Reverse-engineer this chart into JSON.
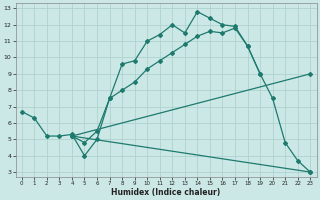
{
  "xlabel": "Humidex (Indice chaleur)",
  "bg_color": "#cce8e6",
  "grid_color": "#aacfcc",
  "line_color": "#1e7a6e",
  "xlim": [
    -0.5,
    23.5
  ],
  "ylim": [
    2.7,
    13.3
  ],
  "xticks": [
    0,
    1,
    2,
    3,
    4,
    5,
    6,
    7,
    8,
    9,
    10,
    11,
    12,
    13,
    14,
    15,
    16,
    17,
    18,
    19,
    20,
    21,
    22,
    23
  ],
  "yticks": [
    3,
    4,
    5,
    6,
    7,
    8,
    9,
    10,
    11,
    12,
    13
  ],
  "curve1_x": [
    0,
    1,
    2,
    3,
    4,
    5,
    6,
    7,
    8,
    9,
    10,
    11,
    12,
    13,
    14,
    15,
    16,
    17,
    18,
    19
  ],
  "curve1_y": [
    6.7,
    6.3,
    5.2,
    5.2,
    5.3,
    4.0,
    5.0,
    7.5,
    9.6,
    9.8,
    11.0,
    11.4,
    12.0,
    11.5,
    12.8,
    12.4,
    12.0,
    11.9,
    10.7,
    9.0
  ],
  "curve2_x": [
    4,
    5,
    6,
    7,
    8,
    9,
    10,
    11,
    12,
    13,
    14,
    15,
    16,
    17,
    18,
    19,
    20,
    21,
    22,
    23
  ],
  "curve2_y": [
    5.2,
    4.8,
    5.5,
    7.5,
    8.0,
    8.5,
    9.3,
    9.8,
    10.3,
    10.8,
    11.3,
    11.6,
    11.5,
    11.8,
    10.7,
    9.0,
    7.5,
    4.8,
    3.7,
    3.0
  ],
  "curve3_x": [
    4,
    23
  ],
  "curve3_y": [
    5.2,
    9.0
  ],
  "curve4_x": [
    4,
    23
  ],
  "curve4_y": [
    5.2,
    3.0
  ]
}
